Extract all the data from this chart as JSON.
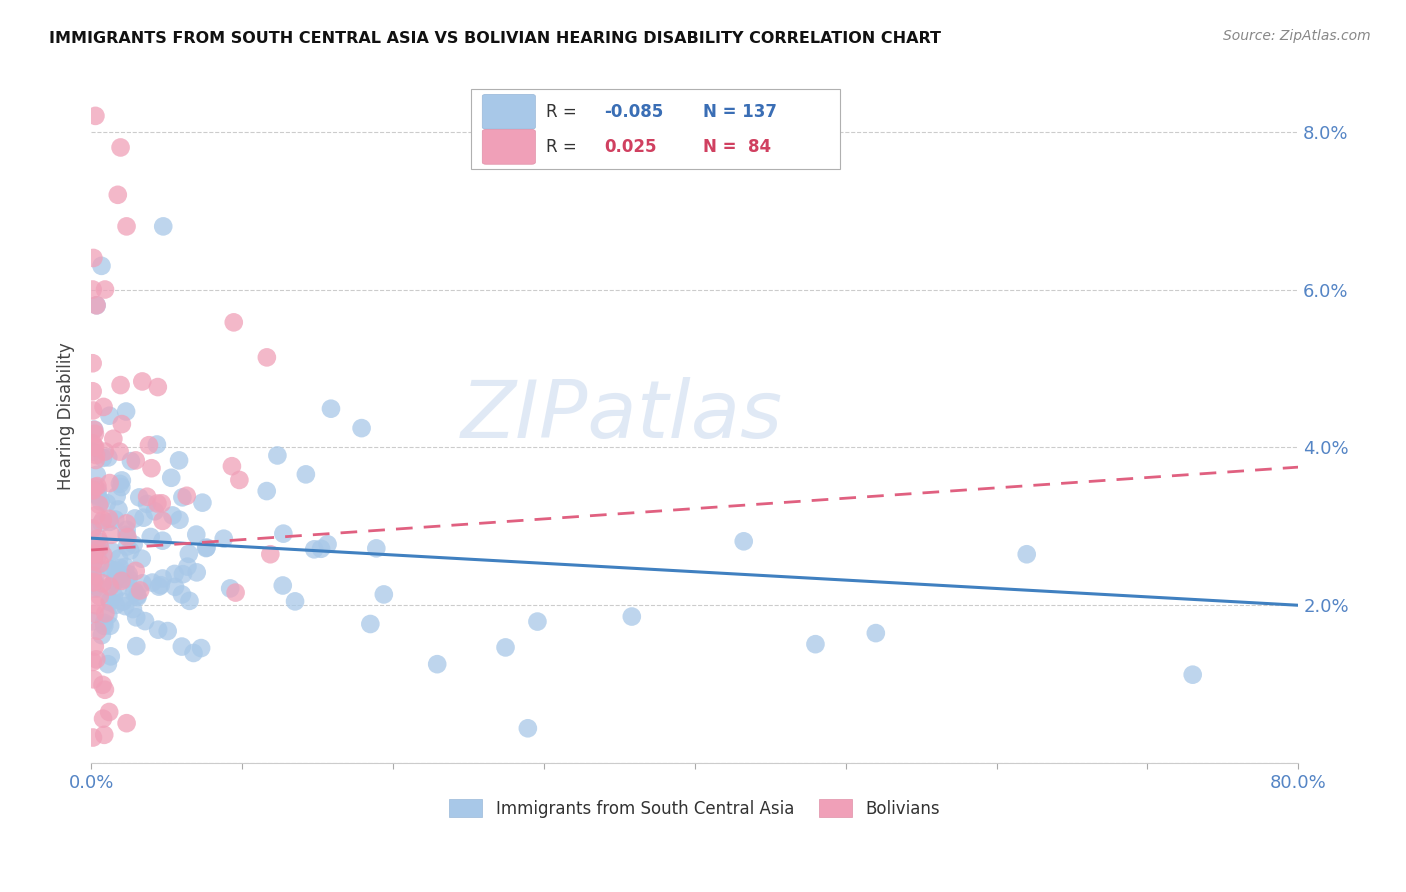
{
  "title": "IMMIGRANTS FROM SOUTH CENTRAL ASIA VS BOLIVIAN HEARING DISABILITY CORRELATION CHART",
  "source": "Source: ZipAtlas.com",
  "ylabel": "Hearing Disability",
  "xlim": [
    0,
    0.8
  ],
  "ylim": [
    0,
    0.088
  ],
  "blue_R": -0.085,
  "blue_N": 137,
  "pink_R": 0.025,
  "pink_N": 84,
  "blue_color": "#a8c8e8",
  "pink_color": "#f0a0b8",
  "blue_line_color": "#4080c0",
  "pink_line_color": "#e06080",
  "watermark": "ZIPatlas",
  "legend_blue_label": "Immigrants from South Central Asia",
  "legend_pink_label": "Bolivians",
  "blue_line_x0": 0.0,
  "blue_line_x1": 0.8,
  "blue_line_y0": 0.0285,
  "blue_line_y1": 0.02,
  "pink_line_x0": 0.0,
  "pink_line_x1": 0.8,
  "pink_line_y0": 0.027,
  "pink_line_y1": 0.0375
}
